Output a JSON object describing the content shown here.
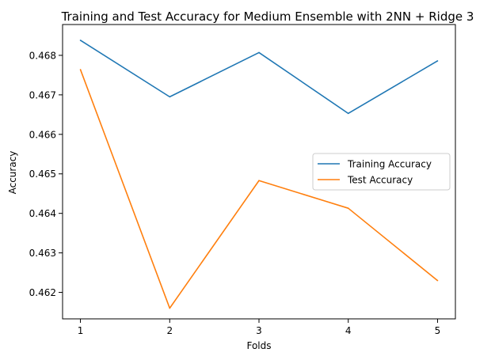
{
  "chart_data": {
    "type": "line",
    "title": "Training and Test Accuracy for Medium Ensemble with 2NN + Ridge 3",
    "xlabel": "Folds",
    "ylabel": "Accuracy",
    "x": [
      1,
      2,
      3,
      4,
      5
    ],
    "x_ticks": [
      "1",
      "2",
      "3",
      "4",
      "5"
    ],
    "y_ticks": [
      "0.462",
      "0.463",
      "0.464",
      "0.465",
      "0.466",
      "0.467",
      "0.468"
    ],
    "xlim": [
      0.8,
      5.2
    ],
    "ylim": [
      0.46133,
      0.46878
    ],
    "grid": false,
    "legend_position": "center-right",
    "series": [
      {
        "name": "Training Accuracy",
        "color": "#1f77b4",
        "values": [
          0.46838,
          0.46695,
          0.46807,
          0.46653,
          0.46786
        ]
      },
      {
        "name": "Test Accuracy",
        "color": "#ff7f0e",
        "values": [
          0.46764,
          0.4616,
          0.46483,
          0.46413,
          0.4623
        ]
      }
    ]
  }
}
